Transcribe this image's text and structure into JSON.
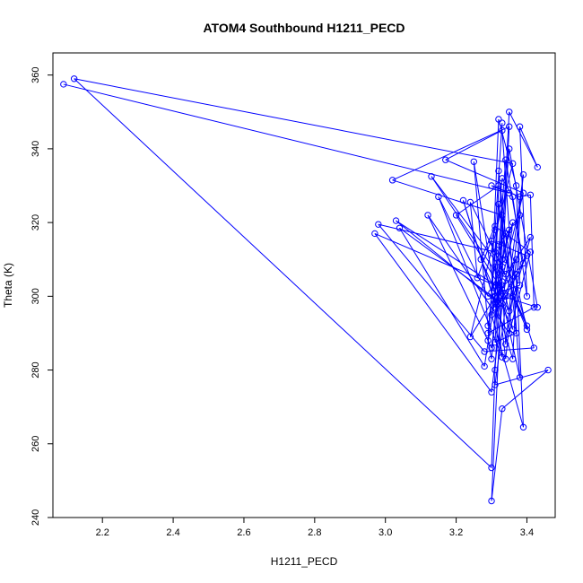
{
  "chart_data": {
    "type": "line",
    "marker": "open-circle",
    "color": "#0000ff",
    "title": "ATOM4 Southbound H1211_PECD",
    "xlabel": "H1211_PECD",
    "ylabel": "Theta (K)",
    "xlim": [
      2.06,
      3.48
    ],
    "ylim": [
      240,
      366
    ],
    "xticks": [
      2.2,
      2.4,
      2.6,
      2.8,
      3.0,
      3.2,
      3.4
    ],
    "xtick_labels": [
      "2.2",
      "2.4",
      "2.6",
      "2.8",
      "3.0",
      "3.2",
      "3.4"
    ],
    "yticks": [
      240,
      260,
      280,
      300,
      320,
      340,
      360
    ],
    "ytick_labels": [
      "240",
      "260",
      "280",
      "300",
      "320",
      "340",
      "360"
    ],
    "grid": false,
    "series": [
      {
        "x": [
          2.09,
          3.35,
          3.3,
          3.38,
          3.41,
          3.42,
          3.29,
          3.33,
          3.36,
          3.4,
          3.38,
          3.43,
          3.35,
          3.31,
          3.3,
          2.12,
          3.36,
          3.24,
          3.33,
          3.34,
          3.39,
          3.31,
          3.46,
          3.33,
          3.3,
          3.35,
          3.02,
          3.33,
          3.31,
          3.37,
          3.32,
          3.34,
          3.42,
          3.28,
          2.98,
          3.31,
          3.4,
          3.36,
          3.32,
          3.29,
          3.3,
          3.35,
          3.43,
          3.33,
          3.31,
          3.39,
          3.17,
          3.33,
          3.38,
          3.31,
          3.34,
          3.4,
          3.36,
          3.03,
          3.32,
          3.37,
          3.39,
          3.3,
          3.33,
          3.13,
          3.34,
          3.41,
          3.35,
          3.31,
          2.97,
          3.3,
          3.36,
          3.3,
          3.32,
          3.37,
          3.38,
          3.29,
          3.15,
          3.33,
          3.31,
          3.39,
          3.34,
          3.31,
          3.25,
          3.29,
          3.35,
          3.33,
          3.32,
          3.38,
          3.36,
          3.22,
          3.31,
          3.37,
          3.34,
          3.3,
          3.4,
          3.33,
          3.04,
          3.28,
          3.31,
          3.32,
          3.2,
          3.34,
          3.36,
          3.27,
          3.31,
          3.41,
          3.35,
          3.12,
          3.3,
          3.33,
          3.24,
          3.26,
          3.31,
          3.33
        ],
        "y": [
          357.5,
          328.0,
          330.0,
          327.0,
          327.5,
          297.0,
          290.0,
          332.0,
          327.0,
          300.0,
          346.0,
          335.0,
          350.0,
          280.0,
          253.5,
          359.0,
          336.0,
          289.0,
          303.0,
          287.0,
          333.0,
          276.0,
          280.0,
          269.5,
          244.5,
          346.0,
          331.5,
          322.0,
          287.5,
          290.0,
          334.0,
          310.0,
          286.0,
          285.0,
          319.5,
          312.0,
          292.0,
          300.0,
          325.0,
          288.0,
          283.0,
          340.0,
          297.0,
          300.0,
          297.0,
          328.0,
          337.0,
          345.0,
          278.0,
          308.0,
          317.0,
          291.0,
          300.0,
          320.5,
          298.0,
          306.0,
          264.5,
          295.0,
          304.0,
          332.5,
          306.0,
          316.0,
          296.0,
          303.0,
          317.0,
          274.0,
          320.0,
          301.0,
          348.0,
          330.0,
          303.0,
          300.0,
          327.0,
          283.5,
          300.0,
          309.0,
          337.0,
          300.0,
          336.5,
          292.0,
          318.0,
          310.0,
          314.0,
          322.0,
          283.0,
          326.0,
          298.0,
          310.0,
          283.0,
          315.0,
          311.0,
          298.0,
          318.5,
          281.0,
          300.0,
          330.0,
          322.0,
          300.0,
          291.0,
          310.0,
          319.0,
          312.0,
          290.0,
          322.0,
          286.0,
          308.0,
          325.5,
          305.0,
          318.0,
          347.0
        ]
      }
    ]
  }
}
